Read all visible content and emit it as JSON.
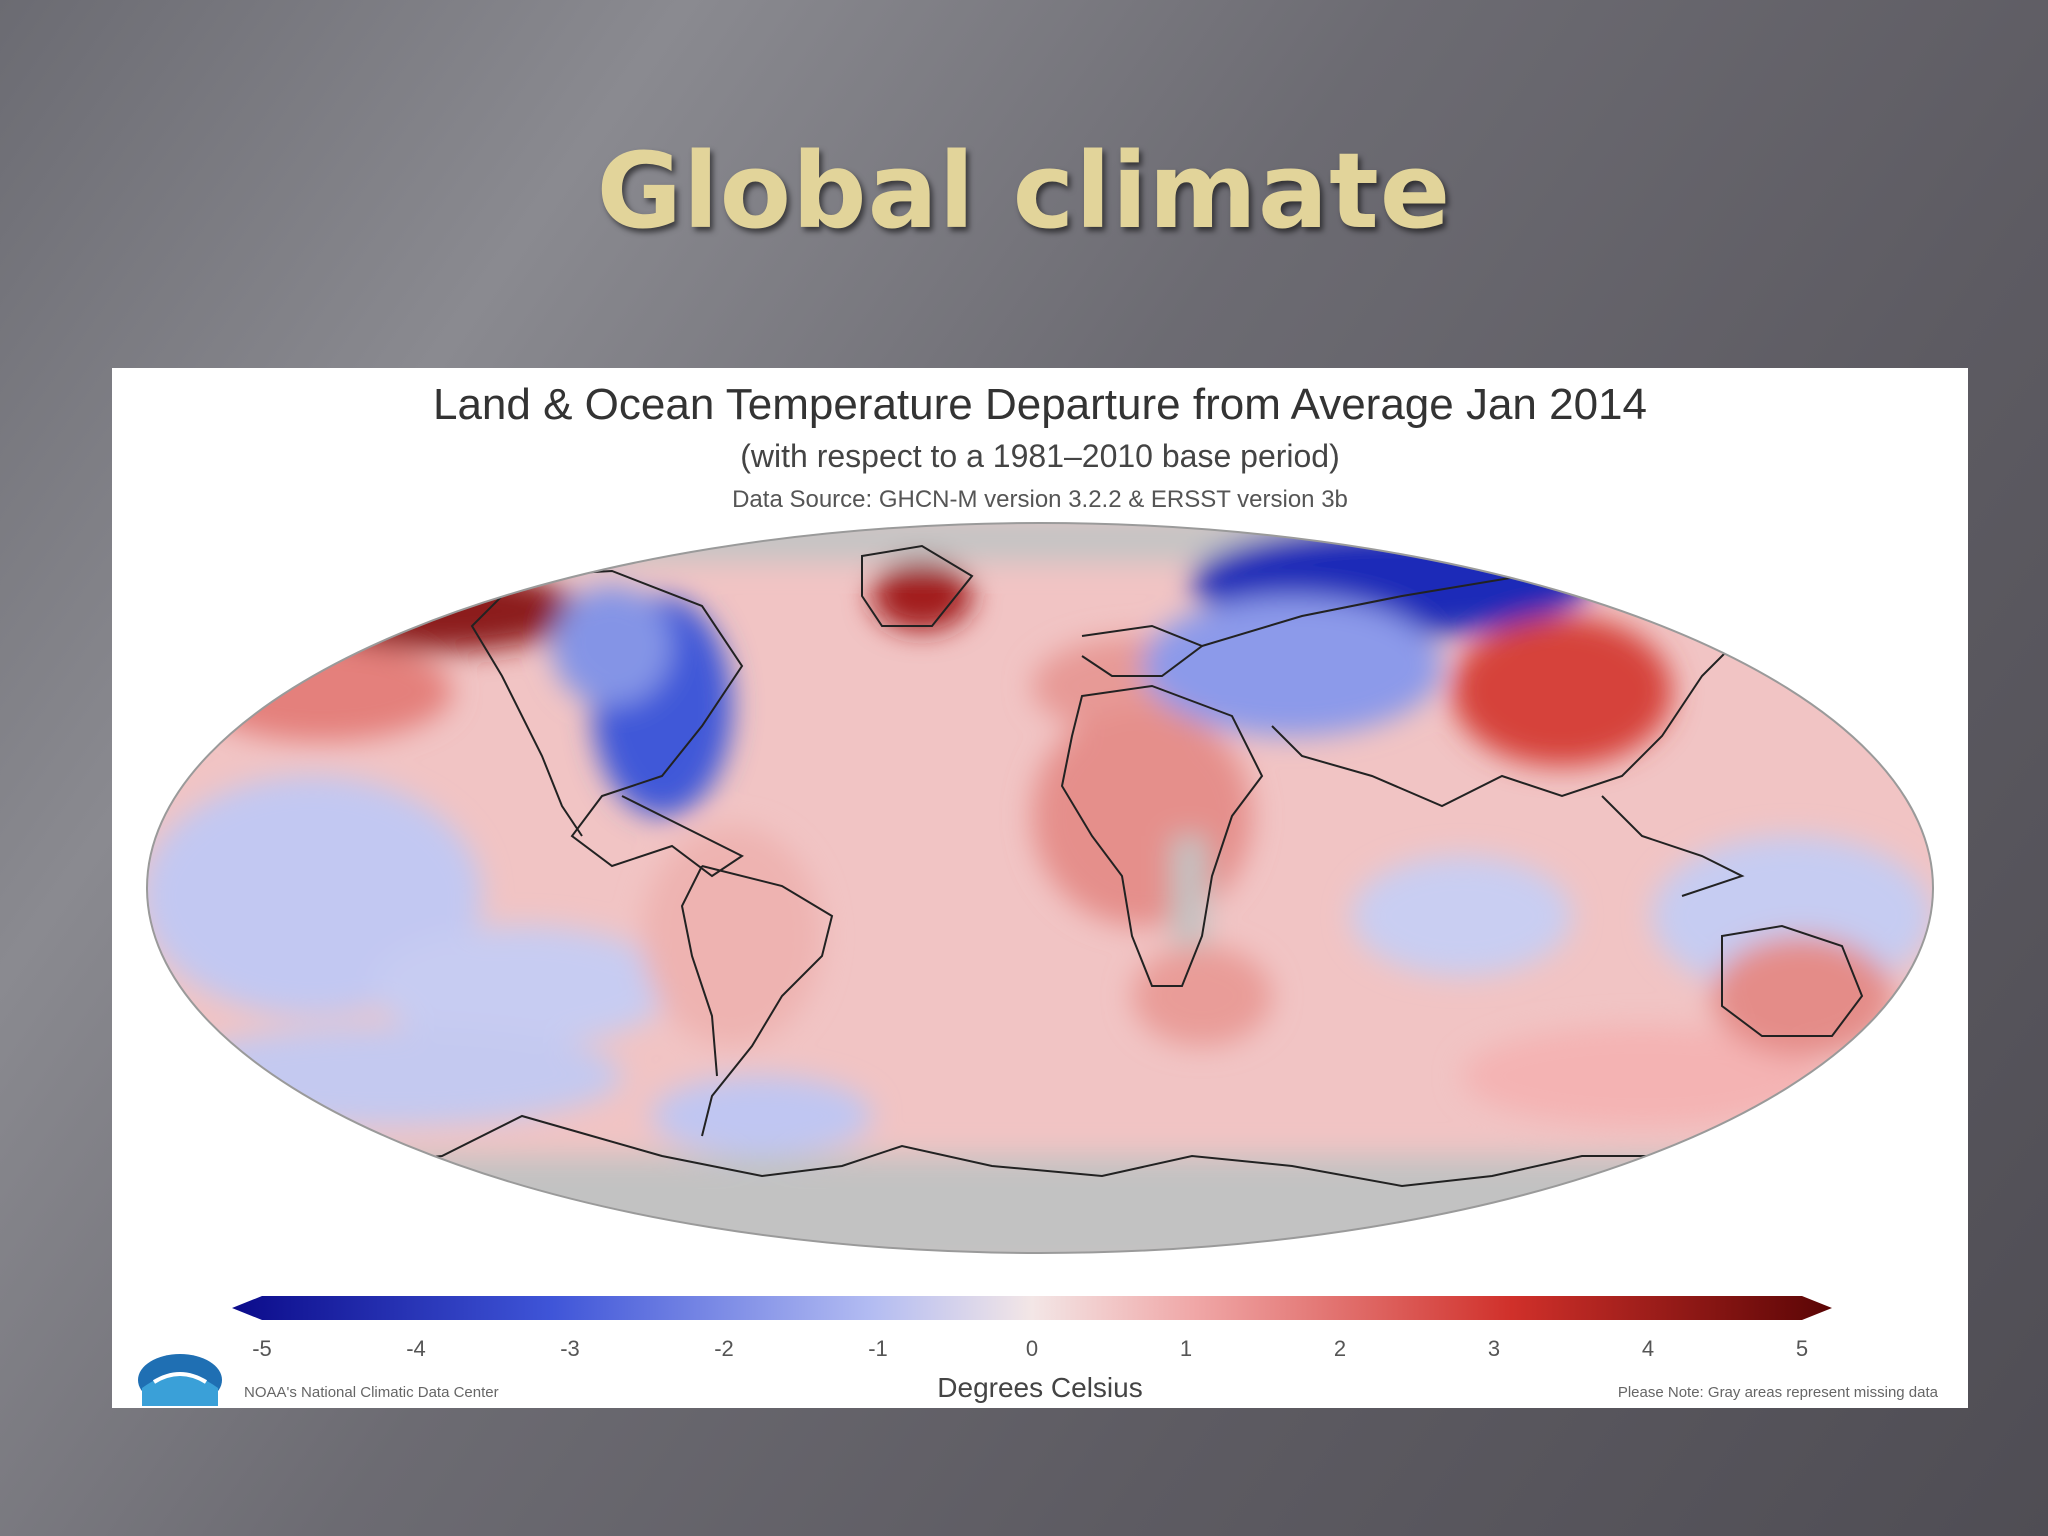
{
  "slide": {
    "title": "Global climate"
  },
  "figure": {
    "title": "Land & Ocean Temperature Departure from Average Jan 2014",
    "subtitle": "(with respect to a 1981–2010 base period)",
    "source": "Data Source: GHCN-M version 3.2.2 & ERSST version 3b",
    "unit_label": "Degrees Celsius",
    "credit_left": "NOAA's National Climatic Data Center",
    "credit_right": "Please Note: Gray areas represent missing data",
    "logo_icon": "noaa-logo-icon",
    "colorbar_ticks": [
      "-5",
      "-4",
      "-3",
      "-2",
      "-1",
      "0",
      "1",
      "2",
      "3",
      "4",
      "5"
    ],
    "colors": {
      "cold_extreme": "#0b0b8a",
      "cold": "#3f55d8",
      "cool": "#b3bcf2",
      "neutral": "#f3e6e6",
      "warm": "#f0a8a8",
      "hot": "#d0302a",
      "hot_extreme": "#5a0505",
      "missing": "#bdbdbd"
    }
  }
}
